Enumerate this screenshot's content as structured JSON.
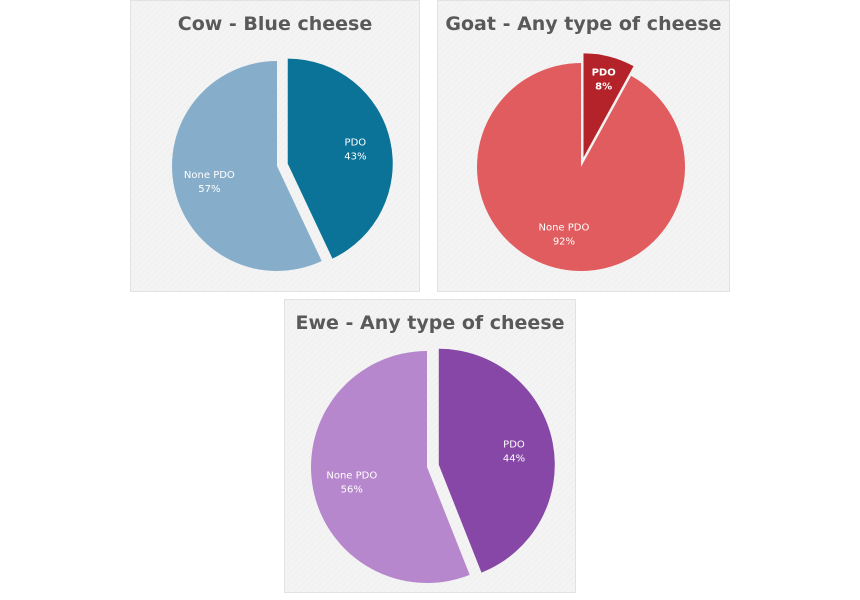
{
  "chart_data": [
    {
      "type": "pie",
      "title": "Cow - Blue cheese",
      "slices": [
        {
          "name": "PDO",
          "value": 43,
          "value_label": "43%",
          "color": "#0b7398",
          "exploded": true
        },
        {
          "name": "None PDO",
          "value": 57,
          "value_label": "57%",
          "color": "#86aecb",
          "exploded": false
        }
      ]
    },
    {
      "type": "pie",
      "title": "Goat - Any type of cheese",
      "slices": [
        {
          "name": "PDO",
          "value": 8,
          "value_label": "8%",
          "color": "#b5232a",
          "exploded": true
        },
        {
          "name": "None PDO",
          "value": 92,
          "value_label": "92%",
          "color": "#e05c5e",
          "exploded": false
        }
      ]
    },
    {
      "type": "pie",
      "title": "Ewe - Any type of cheese",
      "slices": [
        {
          "name": "PDO",
          "value": 44,
          "value_label": "44%",
          "color": "#8747a6",
          "exploded": true
        },
        {
          "name": "None PDO",
          "value": 56,
          "value_label": "56%",
          "color": "#b687cc",
          "exploded": false
        }
      ]
    }
  ]
}
